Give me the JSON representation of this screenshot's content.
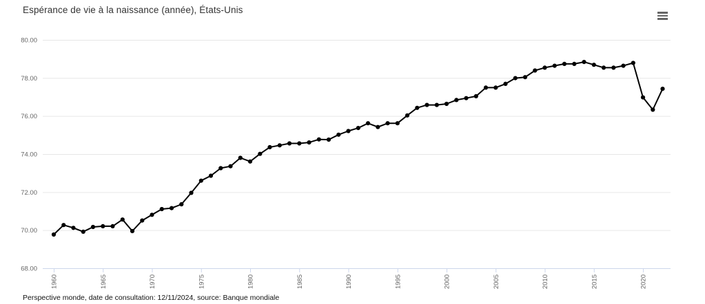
{
  "header": {
    "title": "Espérance de vie à la naissance (année), États-Unis"
  },
  "toolbar": {
    "context_menu_icon": "hamburger"
  },
  "footer": {
    "source": "Perspective monde, date de consultation: 12/11/2024, source: Banque mondiale"
  },
  "colors": {
    "series_line": "#000000",
    "marker_fill": "#000000",
    "gridline": "#e6e6e6",
    "axis_line": "#ccd6eb",
    "tick": "#ccd6eb",
    "axis_label": "#666666",
    "title_text": "#333333",
    "background": "#ffffff"
  },
  "chart_data": {
    "type": "line",
    "title": "Espérance de vie à la naissance (année), États-Unis",
    "series_name": "États-Unis",
    "xlabel": "",
    "ylabel": "",
    "legend": "none",
    "grid": true,
    "ylim": [
      68,
      80
    ],
    "yticks": [
      68,
      70,
      72,
      74,
      76,
      78,
      80
    ],
    "ytick_decimals": 2,
    "xticks": [
      1960,
      1965,
      1970,
      1975,
      1980,
      1985,
      1990,
      1995,
      2000,
      2005,
      2010,
      2015,
      2020
    ],
    "x": [
      1960,
      1961,
      1962,
      1963,
      1964,
      1965,
      1966,
      1967,
      1968,
      1969,
      1970,
      1971,
      1972,
      1973,
      1974,
      1975,
      1976,
      1977,
      1978,
      1979,
      1980,
      1981,
      1982,
      1983,
      1984,
      1985,
      1986,
      1987,
      1988,
      1989,
      1990,
      1991,
      1992,
      1993,
      1994,
      1995,
      1996,
      1997,
      1998,
      1999,
      2000,
      2001,
      2002,
      2003,
      2004,
      2005,
      2006,
      2007,
      2008,
      2009,
      2010,
      2011,
      2012,
      2013,
      2014,
      2015,
      2016,
      2017,
      2018,
      2019,
      2020,
      2021,
      2022
    ],
    "values": [
      69.77,
      70.27,
      70.12,
      69.92,
      70.17,
      70.21,
      70.21,
      70.56,
      69.95,
      70.51,
      70.81,
      71.11,
      71.16,
      71.36,
      71.96,
      72.6,
      72.86,
      73.26,
      73.36,
      73.8,
      73.61,
      74.01,
      74.36,
      74.46,
      74.56,
      74.56,
      74.61,
      74.77,
      74.76,
      75.02,
      75.21,
      75.37,
      75.62,
      75.42,
      75.62,
      75.62,
      76.03,
      76.43,
      76.58,
      76.58,
      76.64,
      76.84,
      76.94,
      77.04,
      77.49,
      77.49,
      77.69,
      77.99,
      78.04,
      78.39,
      78.54,
      78.64,
      78.74,
      78.74,
      78.84,
      78.69,
      78.54,
      78.54,
      78.64,
      78.79,
      76.98,
      76.33,
      77.43
    ]
  }
}
